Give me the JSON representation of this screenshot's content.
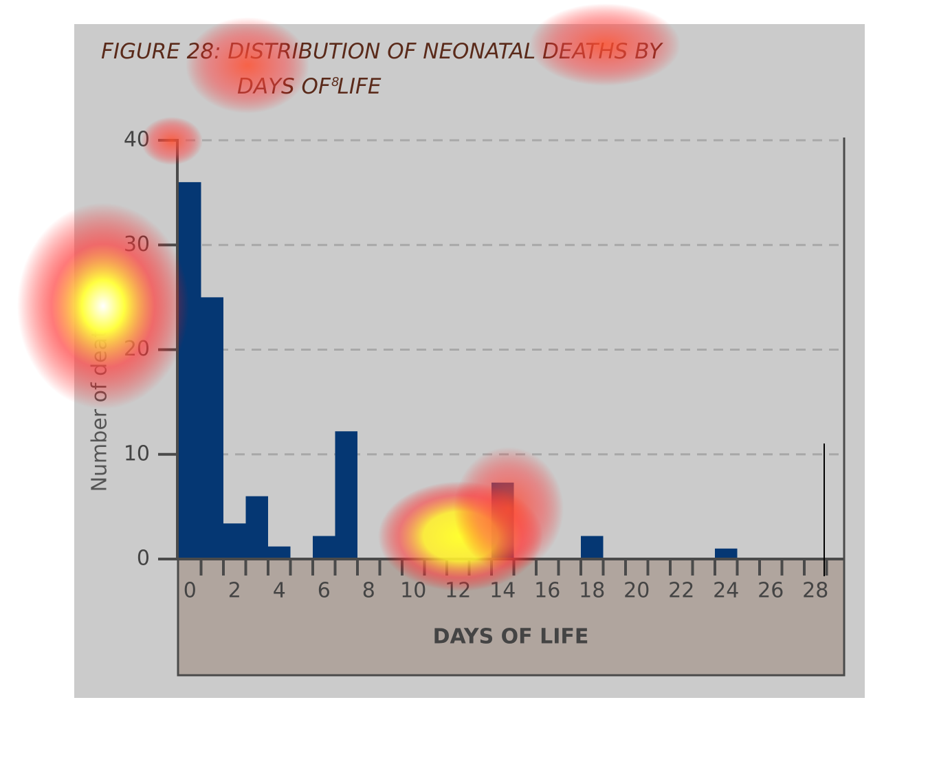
{
  "chart_data": {
    "type": "bar",
    "title": "FIGURE 28: DISTRIBUTION OF NEONATAL DEATHS BY DAYS OF LIFE",
    "title_note": "8",
    "x_label": "DAYS OF LIFE",
    "y_label": "Number of deaths",
    "categories": [
      "0",
      null,
      "2",
      null,
      "4",
      null,
      "6",
      null,
      "8",
      null,
      "10",
      null,
      "12",
      null,
      "14",
      null,
      "16",
      null,
      "18",
      null,
      "20",
      null,
      "22",
      null,
      "24",
      null,
      "26",
      null,
      "28"
    ],
    "values": [
      36,
      25,
      3.4,
      6,
      1.2,
      0,
      2.2,
      12.2,
      0,
      0,
      0,
      0,
      0,
      0,
      7.3,
      0,
      0,
      0,
      2.2,
      0,
      0,
      0,
      0,
      0,
      1,
      0,
      0,
      0,
      0
    ],
    "color": "#053773",
    "ylim": [
      0,
      40
    ],
    "yticks": [
      0,
      10,
      20,
      30,
      40
    ],
    "grid": true
  }
}
